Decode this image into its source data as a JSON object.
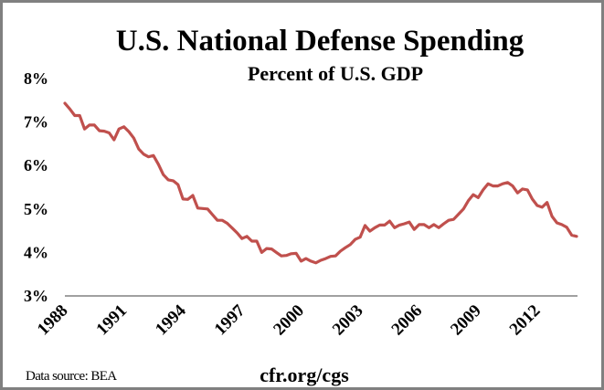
{
  "chart_data": {
    "type": "line",
    "title": "U.S. National Defense Spending",
    "subtitle": "Percent of U.S. GDP",
    "xlabel": "",
    "ylabel": "",
    "frequency": "quarterly",
    "x_start": 1988.0,
    "x_end": 2014.0,
    "ylim": [
      3,
      8
    ],
    "y_ticks": [
      {
        "value": 8,
        "label": "8%"
      },
      {
        "value": 7,
        "label": "7%"
      },
      {
        "value": 6,
        "label": "6%"
      },
      {
        "value": 5,
        "label": "5%"
      },
      {
        "value": 4,
        "label": "4%"
      },
      {
        "value": 3,
        "label": "3%"
      }
    ],
    "x_ticks": [
      {
        "value": 1988,
        "label": "1988"
      },
      {
        "value": 1991,
        "label": "1991"
      },
      {
        "value": 1994,
        "label": "1994"
      },
      {
        "value": 1997,
        "label": "1997"
      },
      {
        "value": 2000,
        "label": "2000"
      },
      {
        "value": 2003,
        "label": "2003"
      },
      {
        "value": 2006,
        "label": "2006"
      },
      {
        "value": 2009,
        "label": "2009"
      },
      {
        "value": 2012,
        "label": "2012"
      }
    ],
    "grid": false,
    "series": [
      {
        "name": "National defense spending (% of GDP)",
        "color": "#c0504d",
        "values": [
          7.43,
          7.3,
          7.15,
          7.15,
          6.84,
          6.93,
          6.93,
          6.8,
          6.79,
          6.75,
          6.59,
          6.84,
          6.89,
          6.78,
          6.63,
          6.38,
          6.26,
          6.2,
          6.23,
          6.03,
          5.79,
          5.67,
          5.65,
          5.56,
          5.23,
          5.22,
          5.31,
          5.02,
          5.01,
          5.0,
          4.87,
          4.74,
          4.74,
          4.67,
          4.56,
          4.45,
          4.32,
          4.37,
          4.26,
          4.26,
          4.0,
          4.09,
          4.08,
          4.0,
          3.92,
          3.93,
          3.97,
          3.98,
          3.8,
          3.86,
          3.8,
          3.76,
          3.82,
          3.86,
          3.91,
          3.92,
          4.03,
          4.11,
          4.18,
          4.3,
          4.35,
          4.62,
          4.49,
          4.57,
          4.63,
          4.63,
          4.72,
          4.57,
          4.63,
          4.66,
          4.7,
          4.53,
          4.64,
          4.64,
          4.57,
          4.64,
          4.57,
          4.66,
          4.74,
          4.76,
          4.88,
          5.0,
          5.19,
          5.33,
          5.26,
          5.44,
          5.58,
          5.53,
          5.53,
          5.58,
          5.61,
          5.53,
          5.37,
          5.46,
          5.44,
          5.23,
          5.08,
          5.04,
          5.15,
          4.83,
          4.68,
          4.64,
          4.58,
          4.4,
          4.37
        ]
      }
    ],
    "source_note": "Data source: BEA",
    "credit": "cfr.org/cgs"
  },
  "colors": {
    "axis": "#808080",
    "frame": "#808080",
    "text": "#000000"
  }
}
